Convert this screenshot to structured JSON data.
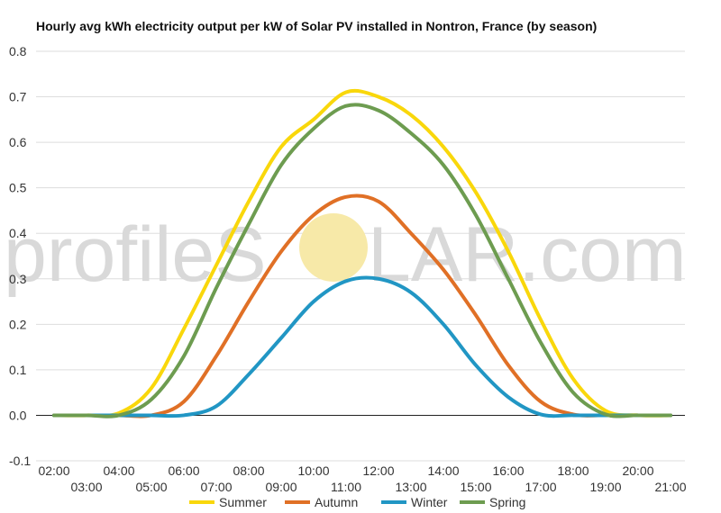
{
  "watermark": {
    "part1": "profileS",
    "part2": "LAR.com",
    "sun_color": "#f7e9a8",
    "text_color": "#d9d9d9"
  },
  "chart_data": {
    "type": "line",
    "title": "Hourly avg kWh electricity output per kW of Solar PV installed in Nontron, France (by season)",
    "xlabel": "",
    "ylabel": "",
    "ylim": [
      -0.1,
      0.8
    ],
    "yticks": [
      "0.8",
      "0.7",
      "0.6",
      "0.5",
      "0.4",
      "0.3",
      "0.2",
      "0.1",
      "0.0",
      "-0.1"
    ],
    "ytick_values": [
      0.8,
      0.7,
      0.6,
      0.5,
      0.4,
      0.3,
      0.2,
      0.1,
      0.0,
      -0.1
    ],
    "grid": true,
    "legend_position": "bottom",
    "x": [
      "02:00",
      "03:00",
      "04:00",
      "05:00",
      "06:00",
      "07:00",
      "08:00",
      "09:00",
      "10:00",
      "11:00",
      "12:00",
      "13:00",
      "14:00",
      "15:00",
      "16:00",
      "17:00",
      "18:00",
      "19:00",
      "20:00",
      "21:00"
    ],
    "series": [
      {
        "name": "Summer",
        "color": "#f9d70b",
        "values": [
          0,
          0,
          0.005,
          0.06,
          0.19,
          0.33,
          0.47,
          0.59,
          0.65,
          0.71,
          0.7,
          0.66,
          0.59,
          0.49,
          0.36,
          0.21,
          0.08,
          0.01,
          0,
          0
        ]
      },
      {
        "name": "Autumn",
        "color": "#e07026",
        "values": [
          0,
          0,
          0,
          0,
          0.03,
          0.13,
          0.25,
          0.36,
          0.44,
          0.48,
          0.47,
          0.4,
          0.32,
          0.22,
          0.11,
          0.03,
          0.002,
          0,
          0,
          0
        ]
      },
      {
        "name": "Winter",
        "color": "#2196c4",
        "values": [
          0,
          0,
          0,
          0,
          0,
          0.02,
          0.09,
          0.17,
          0.25,
          0.295,
          0.3,
          0.27,
          0.2,
          0.11,
          0.04,
          0.002,
          0,
          0,
          0,
          0
        ]
      },
      {
        "name": "Spring",
        "color": "#6d9c50",
        "values": [
          0,
          0,
          0,
          0.035,
          0.13,
          0.28,
          0.42,
          0.55,
          0.63,
          0.68,
          0.67,
          0.62,
          0.55,
          0.44,
          0.3,
          0.16,
          0.05,
          0.002,
          0,
          0
        ]
      }
    ]
  }
}
